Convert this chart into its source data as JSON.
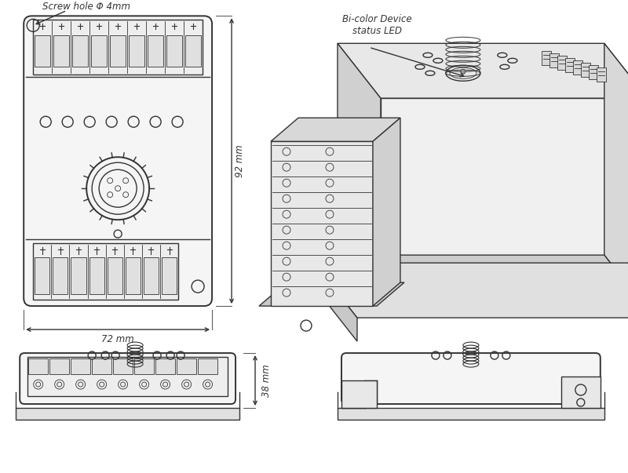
{
  "bg_color": "#ffffff",
  "line_color": "#333333",
  "line_width": 1.0,
  "thin_line": 0.6,
  "thick_line": 1.4,
  "font_size_label": 8.5,
  "font_size_dim": 8.5,
  "annotations": {
    "screw_hole": "Screw hole Φ 4mm",
    "bi_color": "Bi-color Device\nstatus LED",
    "dim_92": "92 mm",
    "dim_72": "72 mm",
    "dim_38": "38 mm"
  }
}
